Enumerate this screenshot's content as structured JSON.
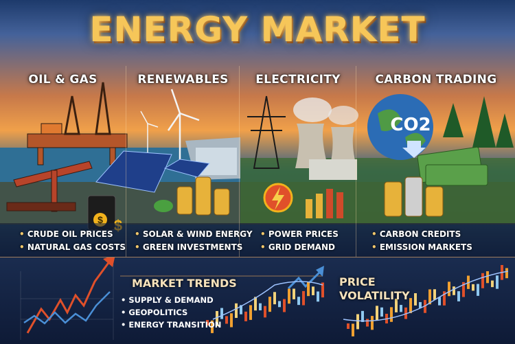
{
  "title": "ENERGY MARKET",
  "colors": {
    "title_gold": "#f6c659",
    "up_red": "#e0502a",
    "down_blue": "#4a8fd6",
    "candle_orange": "#f0a030"
  },
  "sections": [
    {
      "heading": "OIL & GAS",
      "bullets": [
        "CRUDE OIL PRICES",
        "NATURAL GAS COSTS"
      ],
      "icons": [
        "oil-rig-icon",
        "pumpjack-icon",
        "oil-barrel-icon",
        "dollar-icon"
      ]
    },
    {
      "heading": "RENEWABLES",
      "bullets": [
        "SOLAR & WIND ENERGY",
        "GREEN INVESTMENTS"
      ],
      "icons": [
        "wind-turbine-icon",
        "solar-panel-icon",
        "dam-icon",
        "coins-icon",
        "leaf-icon"
      ]
    },
    {
      "heading": "ELECTRICITY",
      "bullets": [
        "POWER PRICES",
        "GRID DEMAND"
      ],
      "icons": [
        "power-pylon-icon",
        "cooling-tower-icon",
        "lightning-icon",
        "bar-chart-icon"
      ]
    },
    {
      "heading": "CARBON TRADING",
      "bullets": [
        "CARBON CREDITS",
        "EMISSION MARKETS"
      ],
      "icons": [
        "globe-icon",
        "down-arrow-icon",
        "money-stack-icon",
        "coins-icon",
        "tree-icon"
      ],
      "globe_label": "CO2"
    }
  ],
  "bottom": {
    "trends_heading": "MARKET TRENDS",
    "trends_bullets": [
      "SUPPLY & DEMAND",
      "GEOPOLITICS",
      "ENERGY TRANSITION"
    ],
    "volatility_heading_1": "PRICE",
    "volatility_heading_2": "VOLATILITY"
  }
}
